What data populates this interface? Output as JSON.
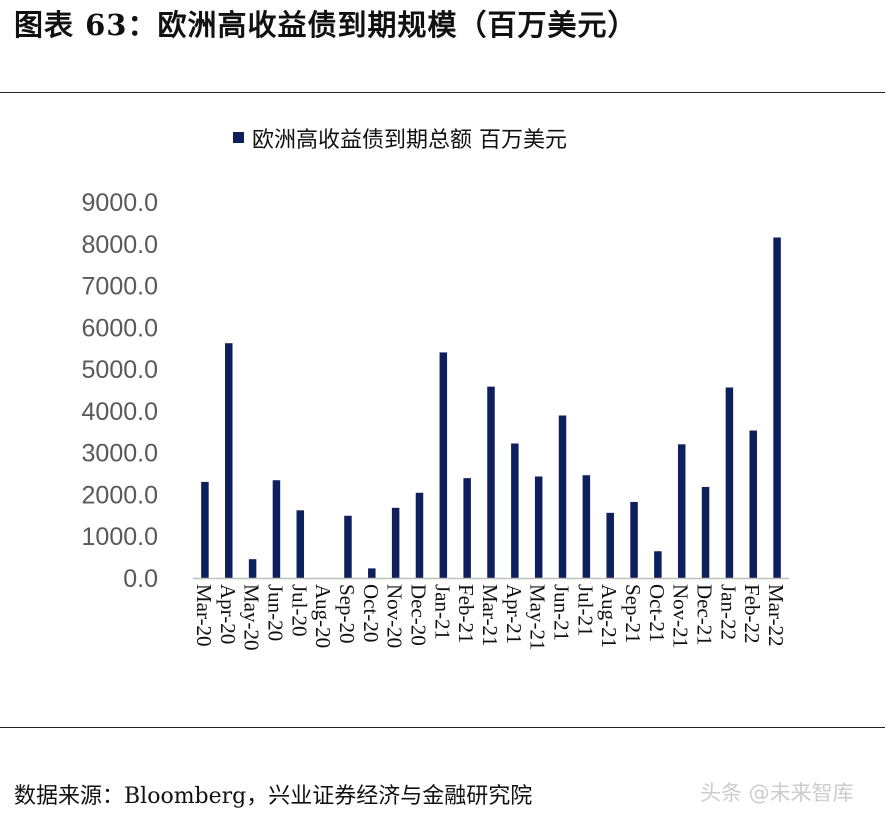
{
  "figure": {
    "title": "图表 63：欧洲高收益债到期规模（百万美元）",
    "source": "数据来源：Bloomberg，兴业证券经济与金融研究院",
    "watermark": "头条 @未来智库"
  },
  "colors": {
    "bar": "#0d1f5c",
    "axis": "#bfbfbf",
    "tick_text": "#595959",
    "label_text": "#111111"
  },
  "chart_data": {
    "type": "bar",
    "legend": {
      "position": "top-center"
    },
    "series": [
      {
        "name": "欧洲高收益债到期总额 百万美元",
        "values": [
          2300,
          5620,
          450,
          2340,
          1620,
          0,
          1490,
          230,
          1680,
          2040,
          5400,
          2390,
          4580,
          3220,
          2430,
          3890,
          2460,
          1560,
          1820,
          640,
          3200,
          2180,
          4560,
          3530,
          8150
        ]
      }
    ],
    "categories": [
      "Mar-20",
      "Apr-20",
      "May-20",
      "Jun-20",
      "Jul-20",
      "Aug-20",
      "Sep-20",
      "Oct-20",
      "Nov-20",
      "Dec-20",
      "Jan-21",
      "Feb-21",
      "Mar-21",
      "Apr-21",
      "May-21",
      "Jun-21",
      "Jul-21",
      "Aug-21",
      "Sep-21",
      "Oct-21",
      "Nov-21",
      "Dec-21",
      "Jan-22",
      "Feb-22",
      "Mar-22"
    ],
    "yticks": [
      "0.0",
      "1000.0",
      "2000.0",
      "3000.0",
      "4000.0",
      "5000.0",
      "6000.0",
      "7000.0",
      "8000.0",
      "9000.0"
    ],
    "ylim": [
      0,
      9000
    ],
    "grid": false
  }
}
